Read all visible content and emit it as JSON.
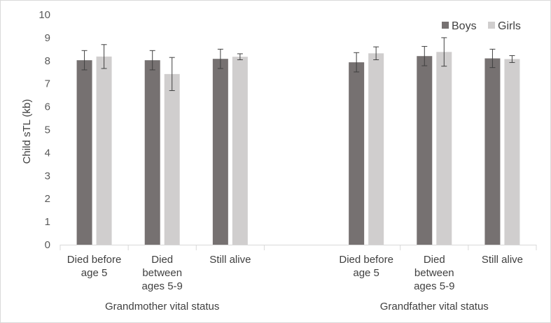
{
  "chart_data": {
    "type": "bar",
    "title": "",
    "ylabel": "Child sTL (kb)",
    "xlabel": "",
    "ylim": [
      0,
      10
    ],
    "yticks": [
      "0",
      "1",
      "2",
      "3",
      "4",
      "5",
      "6",
      "7",
      "8",
      "9",
      "10"
    ],
    "grid": false,
    "legend_position": "top-right",
    "groups": [
      {
        "label": "Grandmother vital status",
        "categories": [
          [
            "Died before",
            "age 5"
          ],
          [
            "Died",
            "between",
            "ages 5-9"
          ],
          [
            "Still alive"
          ]
        ]
      },
      {
        "label": "Grandfather vital status",
        "categories": [
          [
            "Died before",
            "age 5"
          ],
          [
            "Died",
            "between",
            "ages 5-9"
          ],
          [
            "Still alive"
          ]
        ]
      }
    ],
    "series": [
      {
        "name": "Boys",
        "color": "#767171",
        "values": [
          8.02,
          8.02,
          8.08,
          7.93,
          8.2,
          8.1
        ],
        "error": [
          0.42,
          0.42,
          0.42,
          0.42,
          0.42,
          0.4
        ]
      },
      {
        "name": "Girls",
        "color": "#d0cece",
        "values": [
          8.18,
          7.42,
          8.17,
          8.32,
          8.38,
          8.07
        ],
        "error": [
          0.52,
          0.72,
          0.13,
          0.28,
          0.62,
          0.15
        ]
      }
    ]
  }
}
